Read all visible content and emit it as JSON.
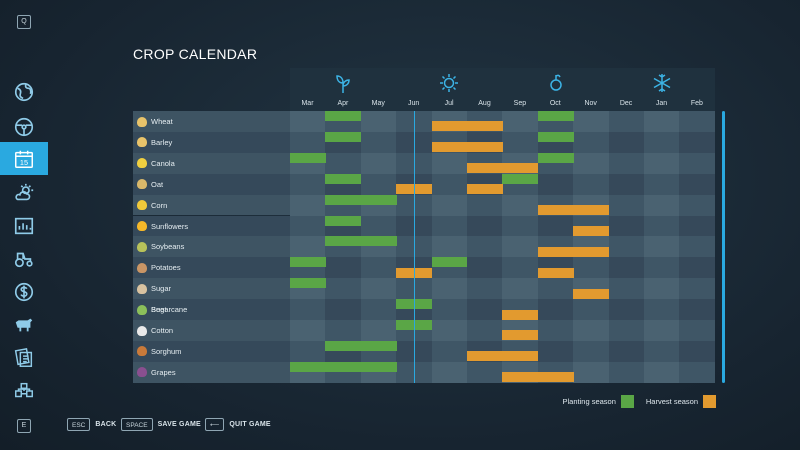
{
  "sidebar": {
    "top_key": "Q",
    "bottom_key": "E",
    "items": [
      {
        "name": "map",
        "icon": "globe-icon"
      },
      {
        "name": "vehicles",
        "icon": "steering-wheel-icon"
      },
      {
        "name": "calendar",
        "icon": "calendar-icon",
        "label": "15",
        "active": true
      },
      {
        "name": "weather",
        "icon": "weather-icon"
      },
      {
        "name": "statistics",
        "icon": "chart-icon"
      },
      {
        "name": "garage",
        "icon": "tractor-icon"
      },
      {
        "name": "finances",
        "icon": "dollar-icon"
      },
      {
        "name": "animals",
        "icon": "cow-icon"
      },
      {
        "name": "contracts",
        "icon": "contracts-icon"
      },
      {
        "name": "production",
        "icon": "production-icon"
      }
    ]
  },
  "page_title": "CROP CALENDAR",
  "months": [
    "Mar",
    "Apr",
    "May",
    "Jun",
    "Jul",
    "Aug",
    "Sep",
    "Oct",
    "Nov",
    "Dec",
    "Jan",
    "Feb"
  ],
  "seasons": [
    {
      "name": "spring",
      "icon": "sprout-icon"
    },
    {
      "name": "summer",
      "icon": "sun-icon"
    },
    {
      "name": "autumn",
      "icon": "leaf-icon"
    },
    {
      "name": "winter",
      "icon": "snowflake-icon"
    }
  ],
  "crops": [
    {
      "name": "Wheat",
      "icon": "wheat-icon",
      "plant": [
        1,
        7
      ],
      "harvest": [
        4,
        5
      ]
    },
    {
      "name": "Barley",
      "icon": "barley-icon",
      "plant": [
        1,
        7
      ],
      "harvest": [
        4,
        5
      ]
    },
    {
      "name": "Canola",
      "icon": "canola-icon",
      "plant": [
        0,
        7
      ],
      "harvest": [
        5,
        6
      ]
    },
    {
      "name": "Oat",
      "icon": "oat-icon",
      "plant": [
        1,
        6
      ],
      "harvest": [
        3,
        5
      ]
    },
    {
      "name": "Corn",
      "icon": "corn-icon",
      "plant": [
        1,
        2
      ],
      "harvest": [
        7,
        8
      ]
    },
    {
      "name": "Sunflowers",
      "icon": "sunflower-icon",
      "plant": [
        1
      ],
      "harvest": [
        8
      ]
    },
    {
      "name": "Soybeans",
      "icon": "soybean-icon",
      "plant": [
        1,
        2
      ],
      "harvest": [
        7,
        8
      ]
    },
    {
      "name": "Potatoes",
      "icon": "potato-icon",
      "plant": [
        0,
        4
      ],
      "harvest": [
        3,
        7
      ]
    },
    {
      "name": "Sugar Beet",
      "icon": "sugarbeet-icon",
      "plant": [
        0
      ],
      "harvest": [
        8
      ]
    },
    {
      "name": "Sugarcane",
      "icon": "sugarcane-icon",
      "plant": [
        3
      ],
      "harvest": [
        6
      ]
    },
    {
      "name": "Cotton",
      "icon": "cotton-icon",
      "plant": [
        3
      ],
      "harvest": [
        6
      ]
    },
    {
      "name": "Sorghum",
      "icon": "sorghum-icon",
      "plant": [
        1,
        2
      ],
      "harvest": [
        5,
        6
      ]
    },
    {
      "name": "Grapes",
      "icon": "grapes-icon",
      "plant": [
        0,
        1,
        2
      ],
      "harvest": [
        6,
        7
      ]
    }
  ],
  "current_month_index": 3,
  "legend": {
    "planting_label": "Planting season",
    "harvest_label": "Harvest season"
  },
  "colors": {
    "planting": "#5aa646",
    "harvest": "#e29a2f",
    "accent": "#2aa9e0"
  },
  "footer": [
    {
      "key": "ESC",
      "label": "BACK"
    },
    {
      "key": "SPACE",
      "label": "SAVE GAME"
    },
    {
      "key": "⟵",
      "label": "QUIT GAME"
    }
  ]
}
